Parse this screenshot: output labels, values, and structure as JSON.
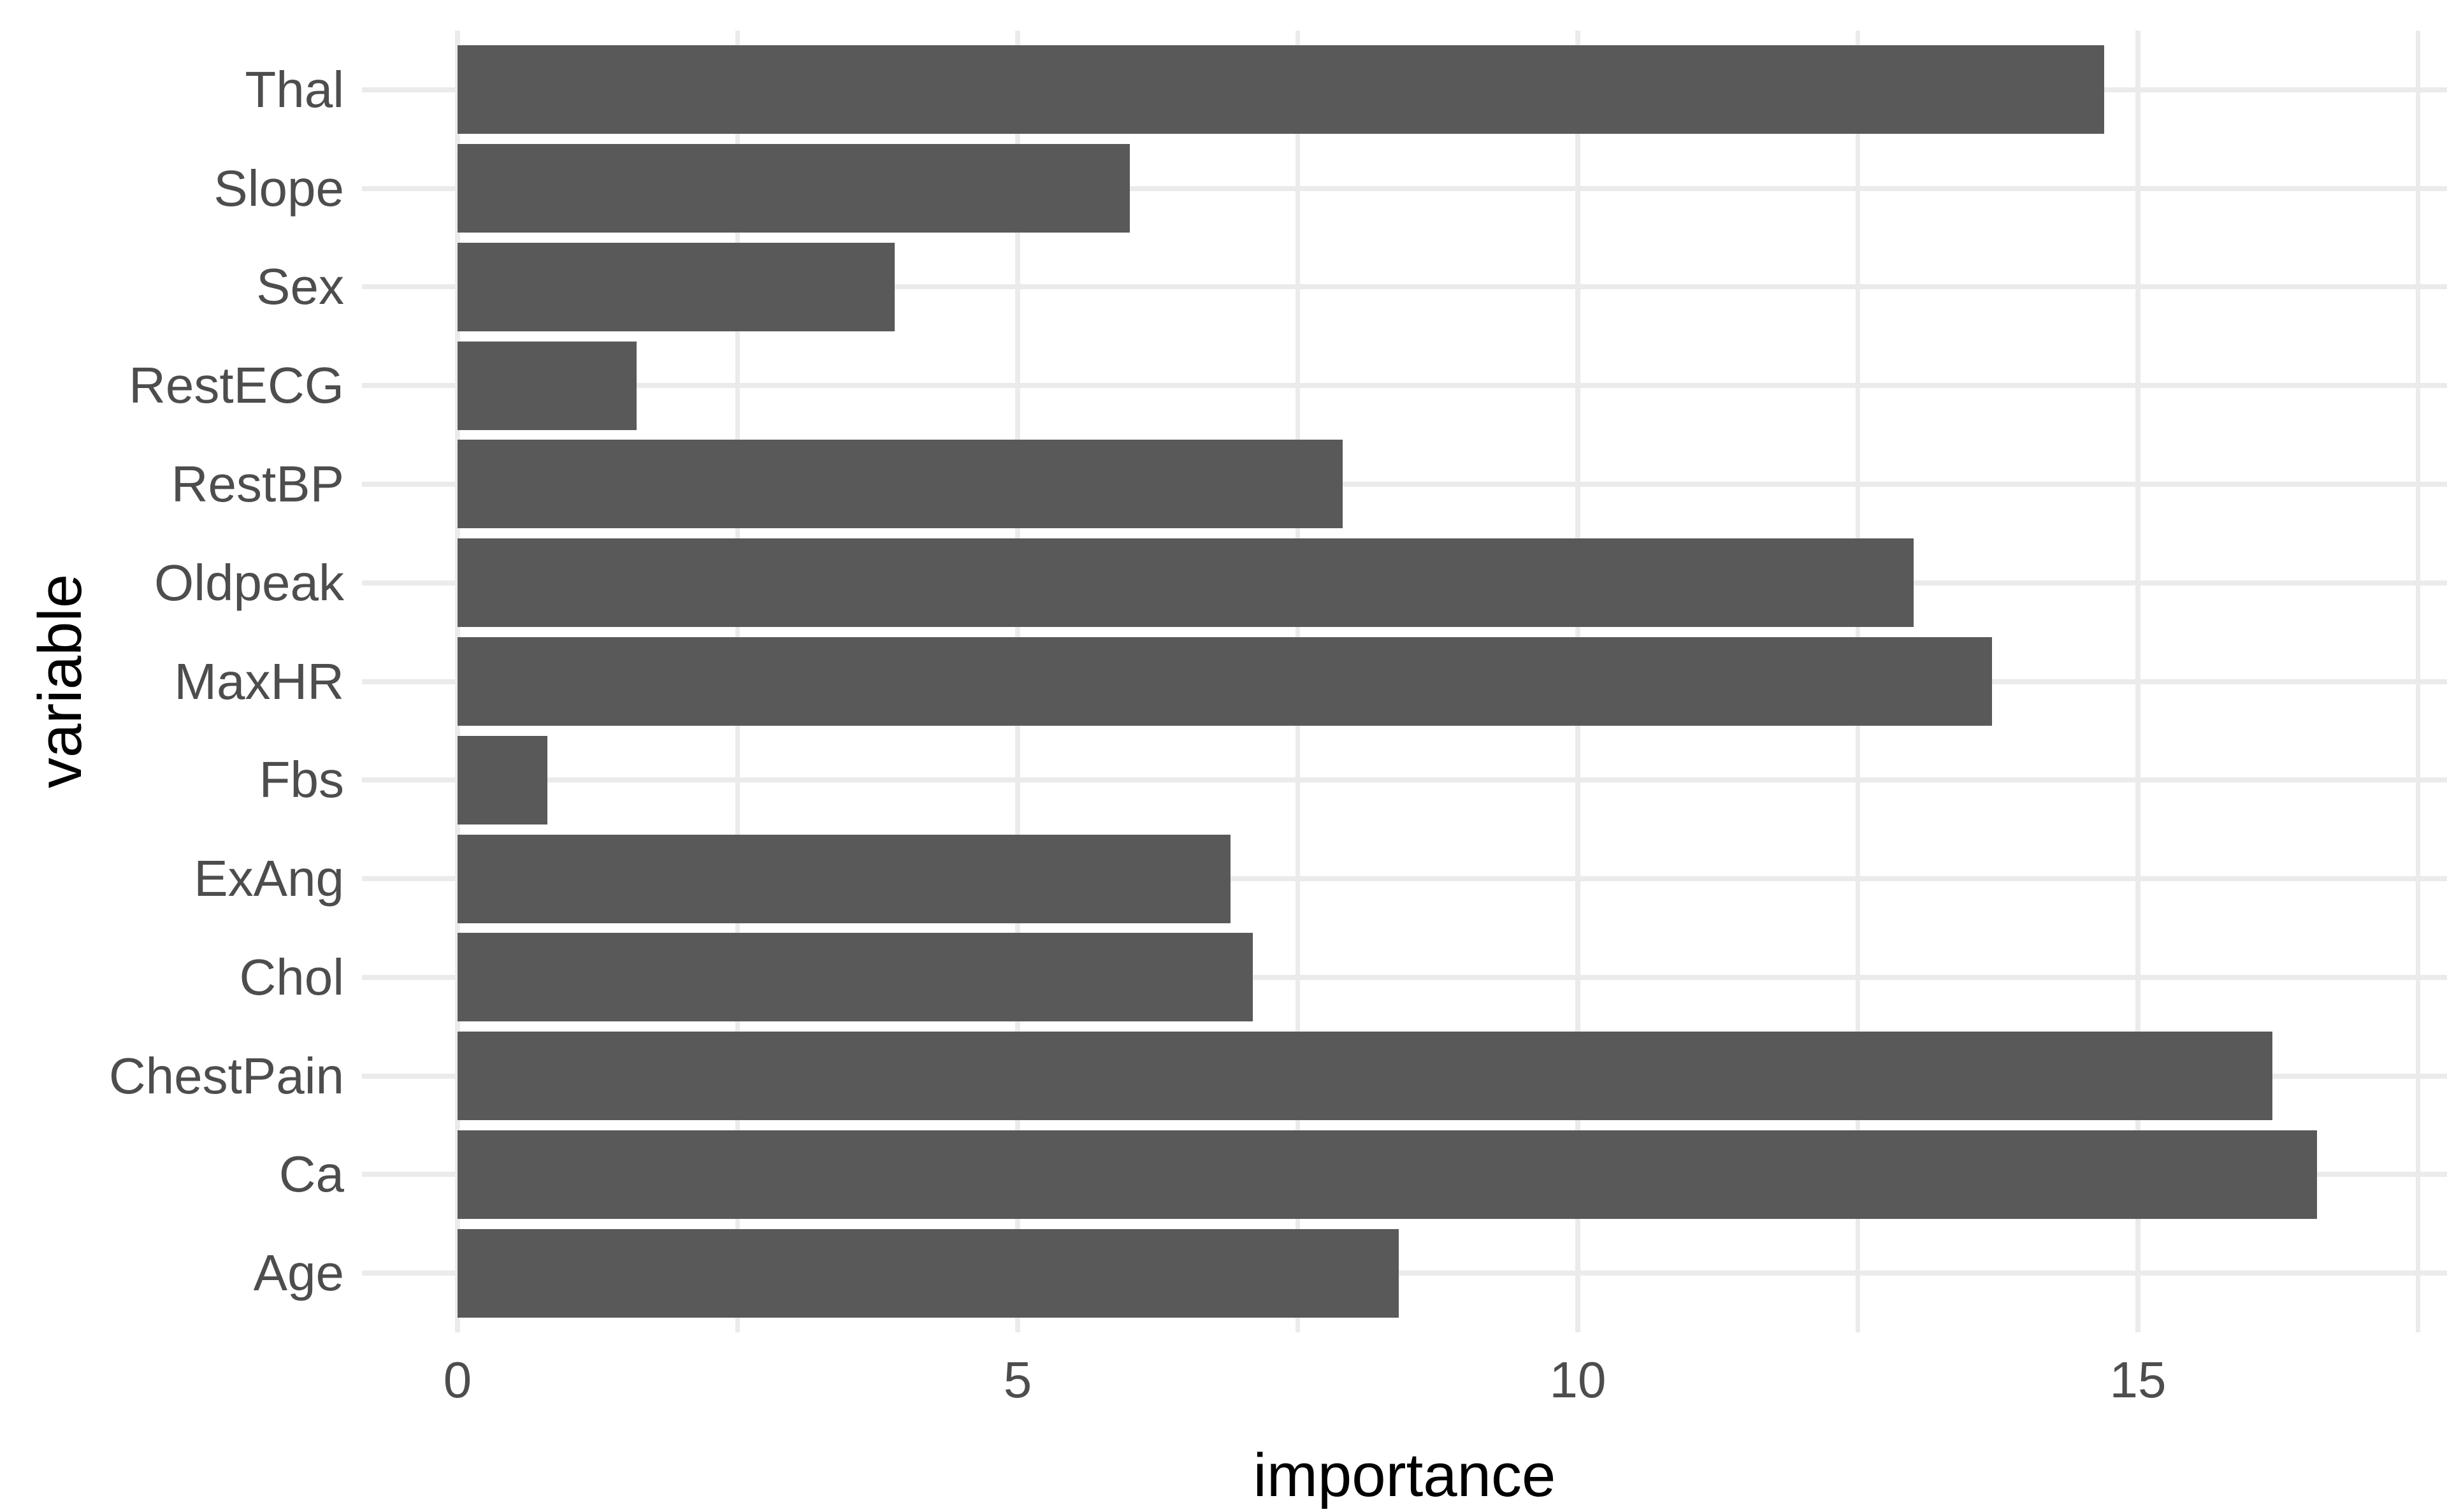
{
  "figure": {
    "background_color": "#ffffff"
  },
  "chart_data": {
    "type": "bar",
    "orientation": "horizontal",
    "title": "",
    "xlabel": "importance",
    "ylabel": "variable",
    "categories_top_to_bottom": [
      "Thal",
      "Slope",
      "Sex",
      "RestECG",
      "RestBP",
      "Oldpeak",
      "MaxHR",
      "Fbs",
      "ExAng",
      "Chol",
      "ChestPain",
      "Ca",
      "Age"
    ],
    "values": [
      14.7,
      6.0,
      3.9,
      1.6,
      7.9,
      13.0,
      13.7,
      0.8,
      6.9,
      7.1,
      16.2,
      16.6,
      8.4
    ],
    "x_tick_labels": [
      "0",
      "5",
      "10",
      "15"
    ],
    "x_major_ticks": [
      0,
      5,
      10,
      15
    ],
    "x_minor_ticks": [
      2.5,
      7.5,
      12.5,
      17.5
    ],
    "xlim": [
      -0.85,
      17.76
    ],
    "grid": "major-and-minor",
    "legend_position": "none",
    "bar_color": "#595959",
    "grid_color": "#EBEBEB",
    "tick_label_color": "#4D4D4D",
    "axis_title_color": "#000000"
  }
}
